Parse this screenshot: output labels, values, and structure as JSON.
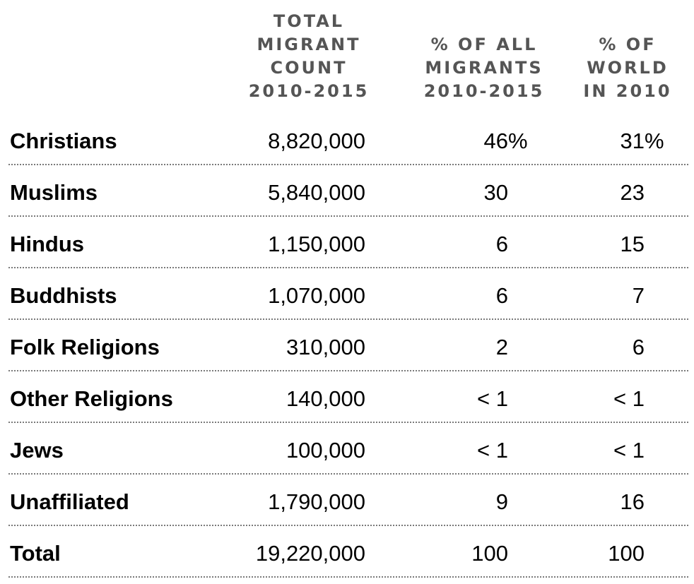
{
  "chart_data": {
    "type": "table",
    "columns": [
      {
        "key": "count",
        "label_lines": [
          "TOTAL",
          "MIGRANT",
          "COUNT",
          "2010-2015"
        ]
      },
      {
        "key": "pct_migrants",
        "label_lines": [
          "% OF ALL",
          "MIGRANTS",
          "2010-2015"
        ]
      },
      {
        "key": "pct_world",
        "label_lines": [
          "% OF",
          "WORLD",
          "IN 2010"
        ]
      }
    ],
    "rows": [
      {
        "label": "Christians",
        "count": "8,820,000",
        "pct_migrants": "46",
        "pct_migrants_suffix": "%",
        "pct_world": "31",
        "pct_world_suffix": "%"
      },
      {
        "label": "Muslims",
        "count": "5,840,000",
        "pct_migrants": "30",
        "pct_migrants_suffix": "",
        "pct_world": "23",
        "pct_world_suffix": ""
      },
      {
        "label": "Hindus",
        "count": "1,150,000",
        "pct_migrants": "6",
        "pct_migrants_suffix": "",
        "pct_world": "15",
        "pct_world_suffix": ""
      },
      {
        "label": "Buddhists",
        "count": "1,070,000",
        "pct_migrants": "6",
        "pct_migrants_suffix": "",
        "pct_world": "7",
        "pct_world_suffix": ""
      },
      {
        "label": "Folk Religions",
        "count": "310,000",
        "pct_migrants": "2",
        "pct_migrants_suffix": "",
        "pct_world": "6",
        "pct_world_suffix": ""
      },
      {
        "label": "Other Religions",
        "count": "140,000",
        "pct_migrants": "< 1",
        "pct_migrants_suffix": "",
        "pct_world": "< 1",
        "pct_world_suffix": ""
      },
      {
        "label": "Jews",
        "count": "100,000",
        "pct_migrants": "< 1",
        "pct_migrants_suffix": "",
        "pct_world": "< 1",
        "pct_world_suffix": ""
      },
      {
        "label": "Unaffiliated",
        "count": "1,790,000",
        "pct_migrants": "9",
        "pct_migrants_suffix": "",
        "pct_world": "16",
        "pct_world_suffix": ""
      },
      {
        "label": "Total",
        "count": "19,220,000",
        "pct_migrants": "100",
        "pct_migrants_suffix": "",
        "pct_world": "100",
        "pct_world_suffix": ""
      }
    ]
  },
  "colors": {
    "header_text": "#555555",
    "body_text": "#000000",
    "divider": "#7a7a7a"
  }
}
